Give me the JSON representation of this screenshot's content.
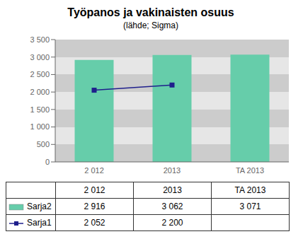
{
  "chart_data": {
    "type": "bar",
    "title": "Työpanos ja vakinaisten osuus",
    "subtitle": "(lähde; Sigma)",
    "categories": [
      "2 012",
      "2013",
      "TA 2013"
    ],
    "series": [
      {
        "name": "Sarja2",
        "type": "bar",
        "color": "#66CDAA",
        "values": [
          2916,
          3062,
          3071
        ],
        "value_labels": [
          "2 916",
          "3 062",
          "3 071"
        ]
      },
      {
        "name": "Sarja1",
        "type": "line",
        "color": "#1F1F8C",
        "marker": "square",
        "values": [
          2052,
          2200,
          null
        ],
        "value_labels": [
          "2 052",
          "2 200",
          null
        ]
      }
    ],
    "ylim": [
      0,
      3500
    ],
    "yticks": [
      0,
      500,
      {
        "value": 1000,
        "label": "1 000"
      },
      {
        "value": 1500,
        "label": "1 500"
      },
      {
        "value": 2000,
        "label": "2 000"
      },
      {
        "value": 2500,
        "label": "2 500"
      },
      {
        "value": 3000,
        "label": "3 000"
      },
      {
        "value": 3500,
        "label": "3 500"
      }
    ],
    "grid": true,
    "legend": "bottom",
    "data_labels": true
  }
}
